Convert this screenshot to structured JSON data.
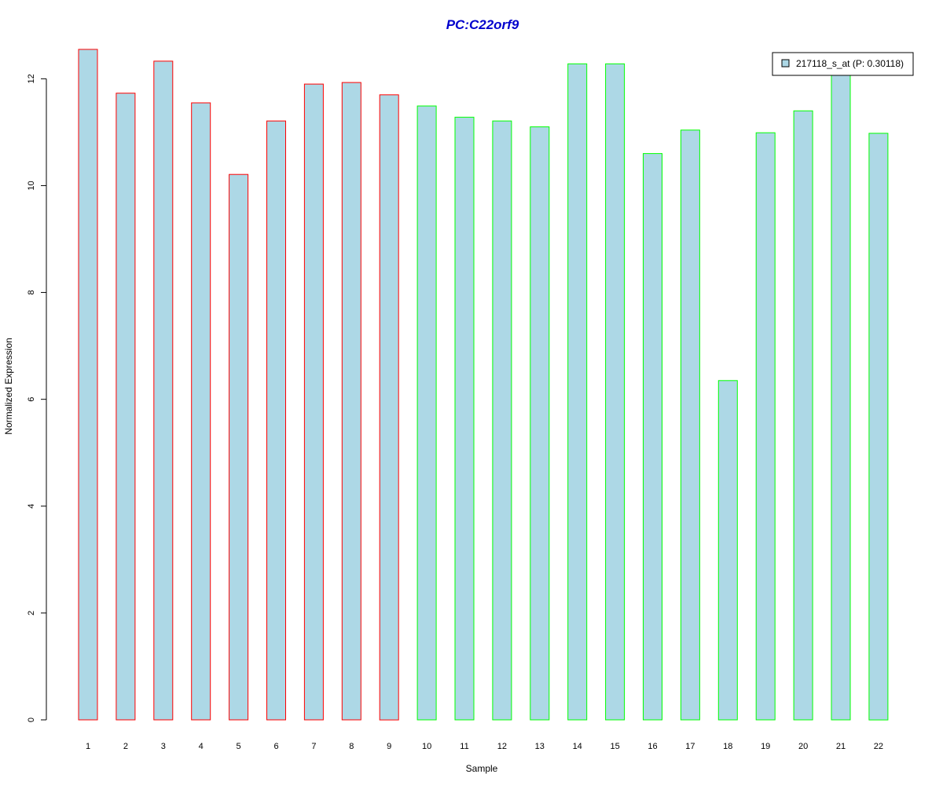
{
  "chart_data": {
    "type": "bar",
    "title": "PC:C22orf9",
    "xlabel": "Sample",
    "ylabel": "Normalized Expression",
    "categories": [
      "1",
      "2",
      "3",
      "4",
      "5",
      "6",
      "7",
      "8",
      "9",
      "10",
      "11",
      "12",
      "13",
      "14",
      "15",
      "16",
      "17",
      "18",
      "19",
      "20",
      "21",
      "22"
    ],
    "series": [
      {
        "name": "217118_s_at (P: 0.30118)",
        "values": [
          12.55,
          11.73,
          12.33,
          11.55,
          10.21,
          11.21,
          11.9,
          11.93,
          11.7,
          11.49,
          11.28,
          11.21,
          11.1,
          12.28,
          12.28,
          10.6,
          11.04,
          6.35,
          10.99,
          11.4,
          12.45,
          10.98
        ]
      }
    ],
    "groups": [
      {
        "border_color": "#ff0000",
        "count": 9
      },
      {
        "border_color": "#00ff00",
        "count": 13
      }
    ],
    "ylim": [
      0,
      12.6
    ],
    "yticks": [
      0,
      2,
      4,
      6,
      8,
      10,
      12
    ],
    "legend_position": "top-right",
    "grid": false
  },
  "colors": {
    "bar_fill": "#add8e6",
    "title_color": "#0000cd"
  }
}
